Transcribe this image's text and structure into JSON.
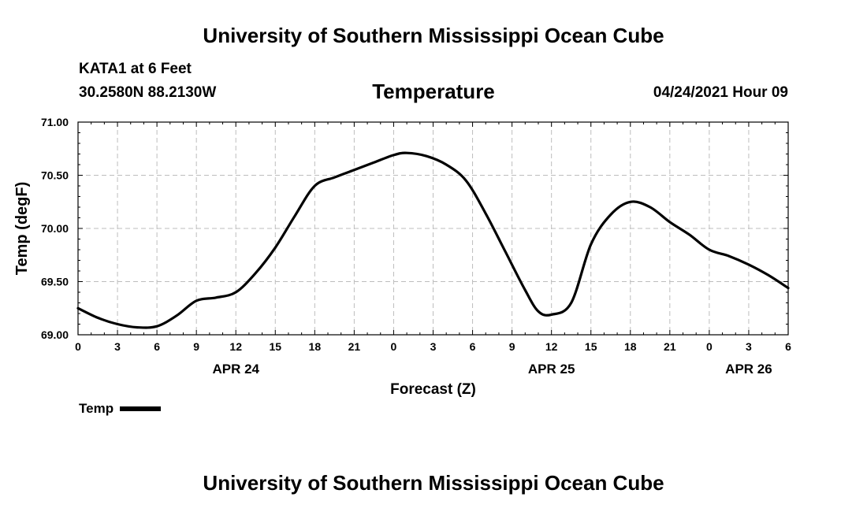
{
  "header": {
    "title": "University of Southern Mississippi Ocean Cube",
    "station": "KATA1 at 6 Feet",
    "coords": "30.2580N  88.2130W",
    "variable": "Temperature",
    "datetime": "04/24/2021 Hour 09"
  },
  "footer": {
    "title": "University of Southern Mississippi Ocean Cube"
  },
  "legend": {
    "label": "Temp"
  },
  "chart_data": {
    "type": "line",
    "ylabel": "Temp (degF)",
    "xlabel": "Forecast (Z)",
    "ylim": [
      69.0,
      71.0
    ],
    "xlim": [
      0,
      54
    ],
    "yticks": [
      "69.00",
      "69.50",
      "70.00",
      "70.50",
      "71.00"
    ],
    "yticks_values": [
      69.0,
      69.5,
      70.0,
      70.5,
      71.0
    ],
    "xticks": [
      "0",
      "3",
      "6",
      "9",
      "12",
      "15",
      "18",
      "21",
      "0",
      "3",
      "6",
      "9",
      "12",
      "15",
      "18",
      "21",
      "0",
      "3",
      "6"
    ],
    "date_labels": [
      {
        "label": "APR 24",
        "hour": 12
      },
      {
        "label": "APR 25",
        "hour": 36
      },
      {
        "label": "APR 26",
        "hour": 51
      }
    ],
    "grid": true,
    "series": [
      {
        "name": "Temp",
        "color": "#000000",
        "x": [
          0,
          1.5,
          3,
          4.5,
          6,
          7.5,
          9,
          10.5,
          12,
          13.5,
          15,
          16.5,
          18,
          19.5,
          21,
          22.5,
          24,
          25,
          26.5,
          28,
          29.5,
          31,
          32.5,
          34,
          35,
          36,
          37.5,
          39,
          40.5,
          42,
          43.5,
          45,
          46.5,
          48,
          49.5,
          51,
          52.5,
          54
        ],
        "y": [
          69.25,
          69.16,
          69.1,
          69.07,
          69.08,
          69.18,
          69.32,
          69.35,
          69.4,
          69.58,
          69.82,
          70.12,
          70.4,
          70.48,
          70.55,
          70.62,
          70.69,
          70.71,
          70.68,
          70.6,
          70.45,
          70.14,
          69.78,
          69.42,
          69.22,
          69.19,
          69.3,
          69.85,
          70.13,
          70.25,
          70.2,
          70.06,
          69.94,
          69.8,
          69.74,
          69.66,
          69.56,
          69.44
        ]
      }
    ]
  }
}
